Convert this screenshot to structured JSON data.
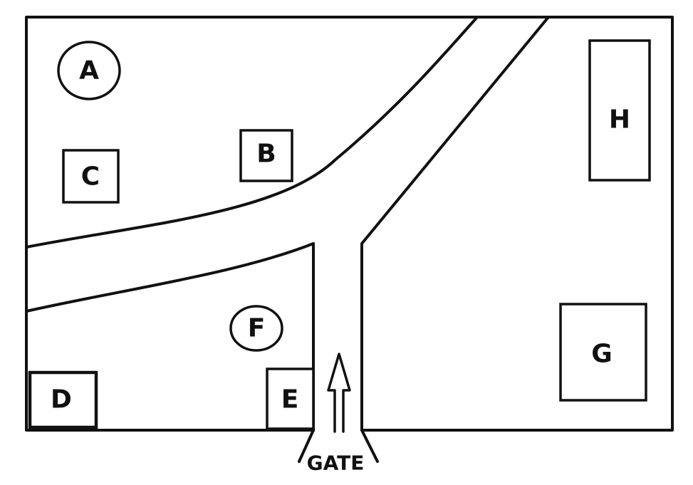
{
  "map": {
    "locations": [
      {
        "id": "A",
        "label": "A",
        "shape": "ellipse"
      },
      {
        "id": "B",
        "label": "B",
        "shape": "square"
      },
      {
        "id": "C",
        "label": "C",
        "shape": "square"
      },
      {
        "id": "D",
        "label": "D",
        "shape": "square"
      },
      {
        "id": "E",
        "label": "E",
        "shape": "square"
      },
      {
        "id": "F",
        "label": "F",
        "shape": "ellipse"
      },
      {
        "id": "G",
        "label": "G",
        "shape": "square"
      },
      {
        "id": "H",
        "label": "H",
        "shape": "rectangle"
      }
    ],
    "gate_label": "GATE"
  }
}
